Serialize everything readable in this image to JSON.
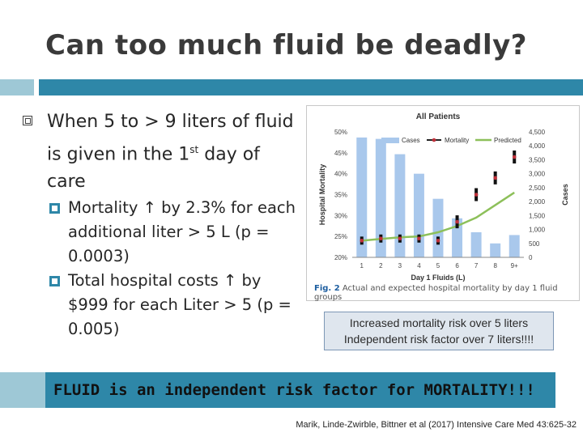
{
  "title": "Can too much fluid be deadly?",
  "bullets": {
    "main": "When 5 to > 9 liters of fluid is given in the 1",
    "main_sup": "st",
    "main_end": "day of care",
    "sub": [
      "Mortality ↑ by 2.3% for each additional liter > 5 L (p = 0.0003)",
      "Total hospital costs ↑ by $999 for each Liter > 5 (p = 0.005)"
    ]
  },
  "figure": {
    "caption_prefix": "Fig. 2",
    "caption_text": "Actual and expected hospital mortality by day 1 fluid groups"
  },
  "chart_data": {
    "type": "bar",
    "title": "All Patients",
    "xlabel": "Day 1 Fluids (L)",
    "ylabel_left": "Hospital Mortality",
    "ylabel_right": "Cases",
    "categories": [
      "1",
      "2",
      "3",
      "4",
      "5",
      "6",
      "7",
      "8",
      "9+"
    ],
    "left_ticks": [
      "20%",
      "25%",
      "30%",
      "35%",
      "40%",
      "45%",
      "50%"
    ],
    "right_ticks": [
      "0",
      "500",
      "1,000",
      "1,500",
      "2,000",
      "2,500",
      "3,000",
      "3,500",
      "4,000",
      "4,500"
    ],
    "left_range": [
      20,
      50
    ],
    "right_range": [
      0,
      4500
    ],
    "legend": [
      "Cases",
      "Mortality",
      "Predicted"
    ],
    "series": [
      {
        "name": "Cases",
        "values": [
          4300,
          4250,
          3700,
          3000,
          2100,
          1400,
          900,
          500,
          800
        ]
      },
      {
        "name": "Mortality",
        "values": [
          24,
          24.5,
          24.5,
          24.5,
          24,
          28.5,
          35,
          39,
          44
        ]
      },
      {
        "name": "Predicted",
        "values": [
          24,
          24.4,
          24.8,
          25,
          26,
          27.5,
          29.5,
          32.5,
          35.5
        ]
      }
    ],
    "colors": {
      "cases": "#a9c8ec",
      "mortality": "#c0303a",
      "predicted": "#8dc05a"
    }
  },
  "note": {
    "line1": "Increased mortality risk over 5 liters",
    "line2": "Independent risk factor over 7 liters!!!!"
  },
  "banner": "FLUID is an independent risk factor for MORTALITY!!!",
  "citation": "Marik, Linde-Zwirble, Bittner et al (2017) Intensive Care Med 43:625-32"
}
